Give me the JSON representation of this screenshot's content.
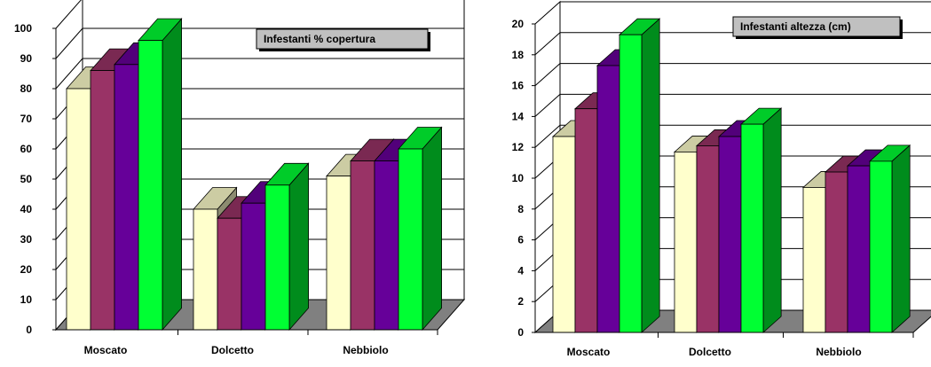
{
  "chart_data": [
    {
      "type": "bar",
      "title": "Infestanti % copertura",
      "categories": [
        "Moscato",
        "Dolcetto",
        "Nebbiolo"
      ],
      "series": [
        {
          "color": "#FFFFCC",
          "values": [
            80,
            40,
            51
          ]
        },
        {
          "color": "#993366",
          "values": [
            86,
            37,
            56
          ]
        },
        {
          "color": "#660099",
          "values": [
            88,
            42,
            56
          ]
        },
        {
          "color": "#00FF33",
          "values": [
            96,
            48,
            60
          ]
        }
      ],
      "yticks": [
        "0",
        "10",
        "20",
        "30",
        "40",
        "50",
        "60",
        "70",
        "80",
        "90",
        "100"
      ],
      "ylim": [
        0,
        100
      ],
      "grid": true,
      "style": "3d-column"
    },
    {
      "type": "bar",
      "title": "Infestanti altezza (cm)",
      "categories": [
        "Moscato",
        "Dolcetto",
        "Nebbiolo"
      ],
      "series": [
        {
          "color": "#FFFFCC",
          "values": [
            12.7,
            11.7,
            9.4
          ]
        },
        {
          "color": "#993366",
          "values": [
            14.5,
            12.1,
            10.4
          ]
        },
        {
          "color": "#660099",
          "values": [
            17.3,
            12.7,
            10.8
          ]
        },
        {
          "color": "#00FF33",
          "values": [
            19.3,
            13.5,
            11.1
          ]
        }
      ],
      "yticks": [
        "0",
        "2",
        "4",
        "6",
        "8",
        "10",
        "12",
        "14",
        "16",
        "18",
        "20"
      ],
      "ylim": [
        0,
        20
      ],
      "grid": true,
      "style": "3d-column"
    }
  ]
}
